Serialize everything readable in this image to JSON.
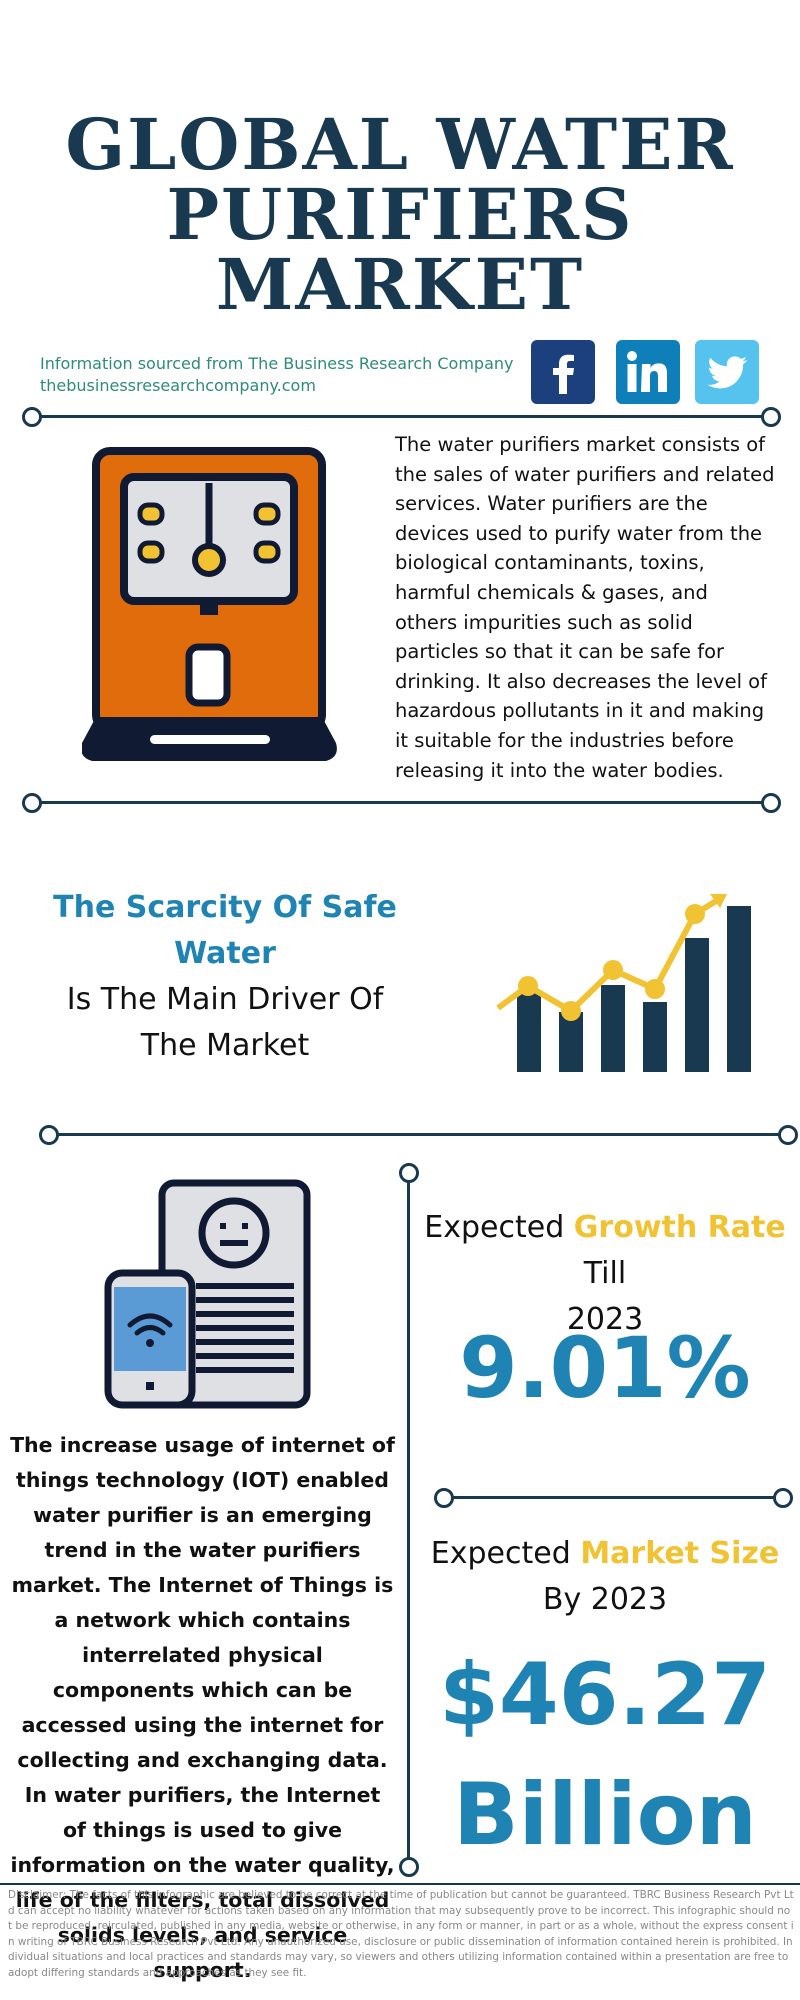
{
  "title": {
    "line1": "GLOBAL WATER",
    "line2": "PURIFIERS MARKET"
  },
  "source": {
    "line1": "Information sourced from The Business Research Company",
    "line2": "thebusinessresearchcompany.com"
  },
  "social": {
    "facebook": "facebook-icon",
    "linkedin": "linkedin-icon",
    "twitter": "twitter-icon"
  },
  "intro": {
    "text": "The water purifiers market consists of the sales of water purifiers and related services. Water purifiers are the devices used to purify water from the biological contaminants, toxins, harmful chemicals & gases, and others impurities such as solid particles so that it can be safe for drinking. It also decreases the level of hazardous pollutants in it and making it suitable for the industries before releasing it into the water bodies."
  },
  "driver": {
    "highlight": "The Scarcity Of Safe Water",
    "line2": "Is The Main Driver Of",
    "line3": "The Market"
  },
  "iot": {
    "text": "The increase usage of internet of things technology (IOT) enabled water purifier is an emerging trend in the water purifiers market. The Internet of Things is a network which contains interrelated physical components which can be accessed using the internet for collecting and exchanging data. In water purifiers, the Internet of things is used to give information on the water quality, life of the filters, total dissolved solids levels, and service support."
  },
  "growth": {
    "prefix": "Expected ",
    "highlight": "Growth Rate",
    "suffix": " Till",
    "year": "2023",
    "value": "9.01%"
  },
  "market_size": {
    "prefix": "Expected ",
    "highlight": "Market Size",
    "year_line": "By 2023",
    "value": "$46.27",
    "unit": "Billion"
  },
  "disclaimer": "Disclaimer: The facts of this infographic are believed to be correct at the time of publication but cannot be guaranteed. TBRC Business Research Pvt Ltd can accept no liability whatever for actions taken based on any information that may subsequently prove to be incorrect. This infographic should not be reproduced, reirculated, published in any media, website or otherwise, in any form or manner, in part or as a whole, without the express consent in writing of TBRC Business Research Pvt Ltd. Any unauthorized use, disclosure or public dissemination of information contained herein is prohibited. Individual situations and local practices and standards may vary, so viewers and others utilizing information contained within a presentation are free to adopt differing standards and approaches as they see fit.",
  "colors": {
    "navy": "#18394f",
    "blue": "#1f84b4",
    "gold": "#f1c232",
    "orange": "#e06c0b",
    "teal_text": "#2e8b7a"
  }
}
